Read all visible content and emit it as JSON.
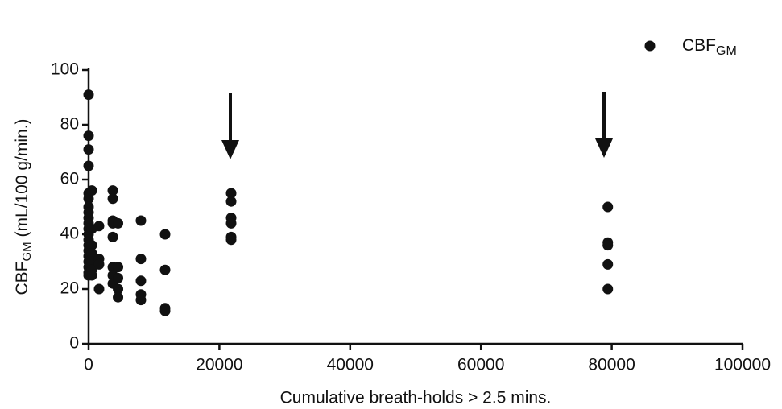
{
  "chart_data": {
    "type": "scatter",
    "x_label": "Cumulative breath-holds > 2.5 mins.",
    "y_label": {
      "main": "CBF",
      "sub": "GM",
      "rest": " (mL/100 g/min.)"
    },
    "xlim": [
      0,
      100000
    ],
    "xticks": [
      0,
      20000,
      40000,
      60000,
      80000,
      100000
    ],
    "ylim": [
      0,
      100
    ],
    "yticks": [
      0,
      20,
      40,
      60,
      80,
      100
    ],
    "legend": "top-right",
    "series": [
      {
        "name": "CBF",
        "name_sub": "GM",
        "color": "#111111",
        "x": [
          0,
          0,
          0,
          0,
          0,
          0,
          0,
          0,
          0,
          0,
          0,
          0,
          0,
          0,
          0,
          0,
          0,
          0,
          0,
          0,
          500,
          500,
          500,
          500,
          500,
          500,
          500,
          1600,
          1600,
          1600,
          1600,
          3700,
          3700,
          3700,
          3700,
          3700,
          3700,
          3700,
          3700,
          4500,
          4500,
          4500,
          4500,
          4500,
          8000,
          8000,
          8000,
          8000,
          8000,
          11700,
          11700,
          11700,
          11700,
          21800,
          21800,
          21800,
          21800,
          21800,
          21800,
          79400,
          79400,
          79400,
          79400,
          79400
        ],
        "values": [
          91,
          76,
          71,
          65,
          55,
          53,
          50,
          48,
          46,
          44,
          42,
          40,
          38,
          36,
          34,
          32,
          30,
          28,
          26,
          25,
          56,
          42,
          36,
          33,
          30,
          27,
          25,
          43,
          31,
          29,
          20,
          56,
          53,
          45,
          44,
          39,
          28,
          25,
          22,
          44,
          28,
          24,
          20,
          17,
          45,
          31,
          23,
          18,
          16,
          40,
          27,
          13,
          12,
          55,
          52,
          46,
          44,
          39,
          38,
          50,
          37,
          36,
          29,
          20
        ]
      }
    ]
  }
}
